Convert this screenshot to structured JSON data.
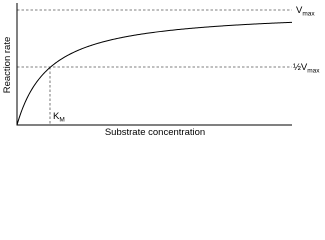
{
  "axes": {
    "y_label": "Reaction rate",
    "x_label": "Substrate concentration"
  },
  "labels": {
    "vmax": {
      "main": "V",
      "sub": "max"
    },
    "half_vmax": {
      "main": "½V",
      "sub": "max"
    },
    "km": {
      "main": "K",
      "sub": "M"
    }
  }
}
